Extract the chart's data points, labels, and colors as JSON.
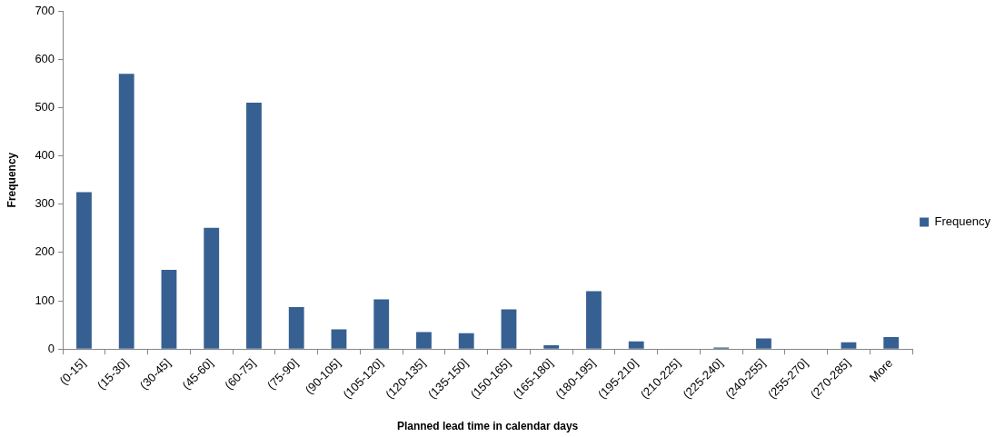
{
  "chart_data": {
    "type": "bar",
    "xlabel": "Planned lead time in calendar days",
    "ylabel": "Frequency",
    "categories": [
      "(0-15]",
      "(15-30]",
      "(30-45]",
      "(45-60]",
      "(60-75]",
      "(75-90]",
      "(90-105]",
      "(105-120]",
      "(120-135]",
      "(135-150]",
      "(150-165]",
      "(165-180]",
      "(180-195]",
      "(195-210]",
      "(210-225]",
      "(225-240]",
      "(240-255]",
      "(255-270]",
      "(270-285]",
      "More"
    ],
    "series": [
      {
        "name": "Frequency",
        "color": "#376092",
        "values": [
          325,
          570,
          164,
          251,
          510,
          87,
          41,
          103,
          35,
          33,
          82,
          8,
          120,
          16,
          0,
          3,
          22,
          0,
          14,
          25
        ]
      }
    ],
    "ylim": [
      0,
      700
    ],
    "yticks": [
      0,
      100,
      200,
      300,
      400,
      500,
      600,
      700
    ],
    "grid": false,
    "legend": "right"
  }
}
